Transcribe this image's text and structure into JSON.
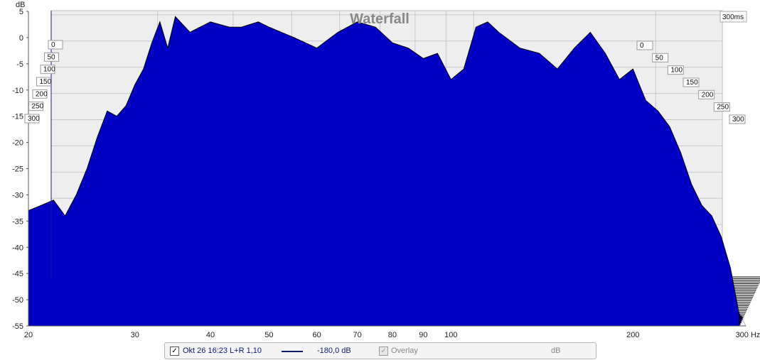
{
  "chart_data": {
    "type": "area",
    "title": "Waterfall",
    "ylabel": "dB",
    "xlabel": "Hz",
    "x_scale": "log",
    "xlim": [
      20,
      300
    ],
    "ylim": [
      -55,
      5
    ],
    "x_ticks": [
      "20",
      "30",
      "40",
      "50",
      "60",
      "70",
      "80",
      "90",
      "100",
      "200",
      "300 Hz"
    ],
    "y_ticks": [
      "5",
      "0",
      "-5",
      "-10",
      "-15",
      "-20",
      "-25",
      "-30",
      "-35",
      "-40",
      "-45",
      "-50",
      "-55"
    ],
    "time_axis_label": "300ms",
    "time_ticks_left": [
      "0",
      "50",
      "100",
      "150",
      "200",
      "250",
      "300"
    ],
    "time_ticks_right": [
      "0",
      "50",
      "100",
      "150",
      "200",
      "250",
      "300"
    ],
    "grid": true,
    "slice_count": 30,
    "slice_time_range_ms": [
      0,
      300
    ],
    "front_slice": {
      "time_ms": 0,
      "x": [
        20,
        21,
        22,
        23,
        24,
        25,
        26,
        27,
        28,
        29,
        30,
        31,
        32,
        33,
        34,
        35,
        37,
        40,
        43,
        45,
        48,
        50,
        55,
        60,
        65,
        70,
        75,
        80,
        85,
        90,
        95,
        100,
        105,
        110,
        115,
        120,
        130,
        140,
        150,
        160,
        170,
        180,
        190,
        200,
        210,
        220,
        230,
        240,
        250,
        260,
        270,
        280,
        290,
        300
      ],
      "y": [
        -33,
        -32,
        -31,
        -34,
        -30,
        -25,
        -19,
        -14,
        -15,
        -13,
        -9,
        -6,
        -1,
        3,
        -2,
        4,
        1,
        3,
        2,
        2,
        3,
        2,
        0,
        -2,
        1,
        3,
        2,
        -1,
        -2,
        -4,
        -3,
        -8,
        -6,
        2,
        3,
        1,
        -2,
        -3,
        -6,
        -2,
        1,
        -3,
        -8,
        -6,
        -12,
        -14,
        -17,
        -22,
        -28,
        -32,
        -34,
        -38,
        -44,
        -53
      ]
    },
    "color": "#0000c4",
    "outline_color": "#000000",
    "legend": [
      {
        "checked": true,
        "name": "Okt 26 16:23 L+R 1,10",
        "value": "-180,0 dB"
      },
      {
        "checked": true,
        "disabled": true,
        "name": "Overlay",
        "value": "dB"
      }
    ]
  }
}
